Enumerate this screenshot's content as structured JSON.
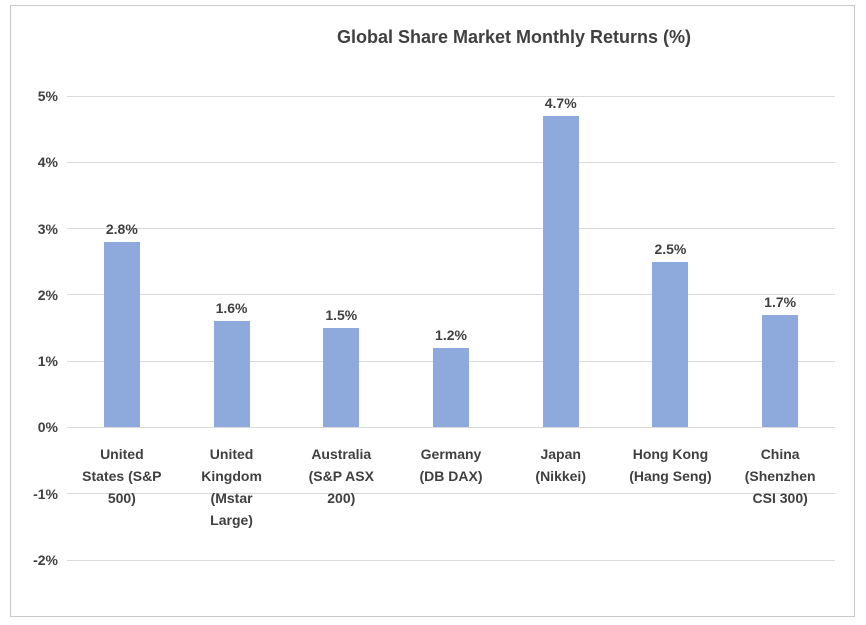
{
  "chart_data": {
    "type": "bar",
    "title": "Global Share Market Monthly Returns (%)",
    "categories": [
      "United States (S&P 500)",
      "United Kingdom (Mstar Large)",
      "Australia (S&P ASX 200)",
      "Germany (DB DAX)",
      "Japan (Nikkei)",
      "Hong Kong (Hang Seng)",
      "China (Shenzhen CSI 300)"
    ],
    "category_lines": [
      [
        "United",
        "States (S&P",
        "500)"
      ],
      [
        "United",
        "Kingdom",
        "(Mstar",
        "Large)"
      ],
      [
        "Australia",
        "(S&P ASX",
        "200)"
      ],
      [
        "Germany",
        "(DB DAX)"
      ],
      [
        "Japan",
        "(Nikkei)"
      ],
      [
        "Hong Kong",
        "(Hang Seng)"
      ],
      [
        "China",
        "(Shenzhen",
        "CSI 300)"
      ]
    ],
    "values": [
      2.8,
      1.6,
      1.5,
      1.2,
      4.7,
      2.5,
      1.7
    ],
    "data_labels": [
      "2.8%",
      "1.6%",
      "1.5%",
      "1.2%",
      "4.7%",
      "2.5%",
      "1.7%"
    ],
    "xlabel": "",
    "ylabel": "",
    "ylim": [
      -2,
      5
    ],
    "y_ticks": [
      {
        "value": 5,
        "label": "5%"
      },
      {
        "value": 4,
        "label": "4%"
      },
      {
        "value": 3,
        "label": "3%"
      },
      {
        "value": 2,
        "label": "2%"
      },
      {
        "value": 1,
        "label": "1%"
      },
      {
        "value": 0,
        "label": "0%"
      },
      {
        "value": -1,
        "label": "-1%"
      },
      {
        "value": -2,
        "label": "-2%"
      }
    ],
    "grid": true,
    "legend": "none",
    "colors": {
      "bar": "#8EA9DB",
      "gridline": "#D9D9D9",
      "text": "#404040",
      "frame_border": "#C9C9C9",
      "background": "#FFFFFF"
    }
  }
}
